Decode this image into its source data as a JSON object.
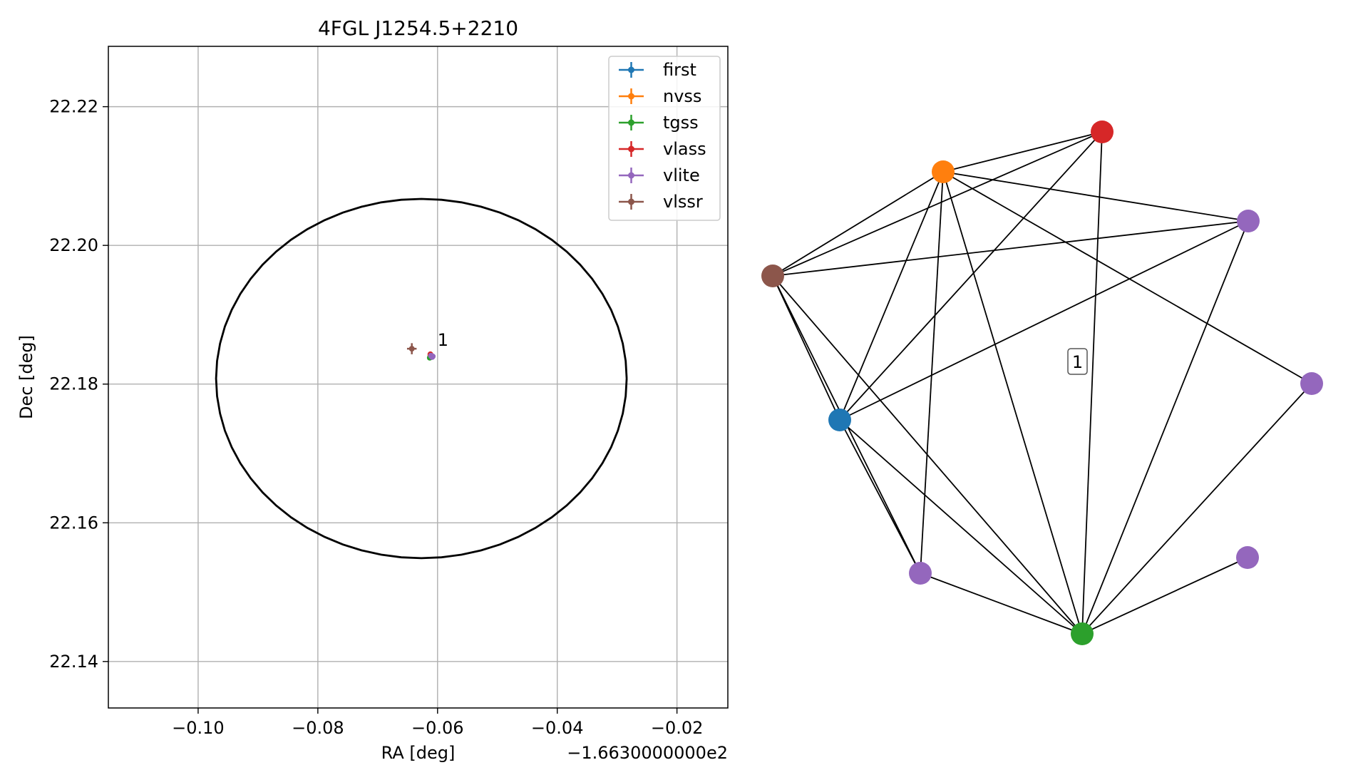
{
  "chart_data": [
    {
      "type": "scatter",
      "title": "4FGL J1254.5+2210",
      "xlabel": "RA [deg]",
      "ylabel": "Dec [deg]",
      "x_offset_label": "−1.6630000000e2",
      "xlim": [
        -0.115,
        -0.0115
      ],
      "ylim": [
        22.1333,
        22.2287
      ],
      "xticks": [
        -0.1,
        -0.08,
        -0.06,
        -0.04,
        -0.02
      ],
      "xtick_labels": [
        "−0.10",
        "−0.08",
        "−0.06",
        "−0.04",
        "−0.02"
      ],
      "yticks": [
        22.14,
        22.16,
        22.18,
        22.2,
        22.22
      ],
      "ytick_labels": [
        "22.14",
        "22.16",
        "22.18",
        "22.20",
        "22.22"
      ],
      "grid": true,
      "legend_position": "top-right",
      "ellipse": {
        "center_x": -0.0627,
        "center_y": 22.1808,
        "semi_axis_x": 0.0343,
        "semi_axis_y": 0.0259,
        "color": "#000000"
      },
      "cluster_label": {
        "text": "1",
        "x": -0.06,
        "y": 22.1855
      },
      "series": [
        {
          "name": "first",
          "color": "#1f77b4",
          "points": [
            {
              "x": -0.0612,
              "y": 22.184,
              "xerr": 0.0002,
              "yerr": 0.0002
            }
          ]
        },
        {
          "name": "nvss",
          "color": "#ff7f0e",
          "points": [
            {
              "x": -0.0612,
              "y": 22.1841,
              "xerr": 0.0003,
              "yerr": 0.0003
            }
          ]
        },
        {
          "name": "tgss",
          "color": "#2ca02c",
          "points": [
            {
              "x": -0.0613,
              "y": 22.1838,
              "xerr": 0.0003,
              "yerr": 0.0003
            }
          ]
        },
        {
          "name": "vlass",
          "color": "#d62728",
          "points": [
            {
              "x": -0.0612,
              "y": 22.1843,
              "xerr": 0.0001,
              "yerr": 0.0001
            }
          ]
        },
        {
          "name": "vlite",
          "color": "#9467bd",
          "points": [
            {
              "x": -0.0609,
              "y": 22.1839,
              "xerr": 0.0002,
              "yerr": 0.0002
            },
            {
              "x": -0.061,
              "y": 22.184,
              "xerr": 0.0002,
              "yerr": 0.0002
            },
            {
              "x": -0.0611,
              "y": 22.1841,
              "xerr": 0.0002,
              "yerr": 0.0002
            },
            {
              "x": -0.0608,
              "y": 22.184,
              "xerr": 0.0002,
              "yerr": 0.0002
            }
          ]
        },
        {
          "name": "vlssr",
          "color": "#8c564b",
          "points": [
            {
              "x": -0.0643,
              "y": 22.1851,
              "xerr": 0.0008,
              "yerr": 0.0008
            }
          ]
        }
      ]
    },
    {
      "type": "network",
      "edge_color": "#000000",
      "nodes": [
        {
          "id": "red",
          "color": "#d62728"
        },
        {
          "id": "orange",
          "color": "#ff7f0e"
        },
        {
          "id": "vlite1",
          "color": "#9467bd"
        },
        {
          "id": "brown",
          "color": "#8c564b"
        },
        {
          "id": "vlite2",
          "color": "#9467bd"
        },
        {
          "id": "blue",
          "color": "#1f77b4"
        },
        {
          "id": "vlite3",
          "color": "#9467bd"
        },
        {
          "id": "vlite4",
          "color": "#9467bd"
        },
        {
          "id": "green",
          "color": "#2ca02c"
        }
      ],
      "edges": [
        [
          "red",
          "orange"
        ],
        [
          "red",
          "brown"
        ],
        [
          "red",
          "blue"
        ],
        [
          "red",
          "green"
        ],
        [
          "orange",
          "vlite1"
        ],
        [
          "orange",
          "brown"
        ],
        [
          "orange",
          "blue"
        ],
        [
          "orange",
          "vlite3"
        ],
        [
          "orange",
          "green"
        ],
        [
          "orange",
          "vlite2"
        ],
        [
          "vlite1",
          "brown"
        ],
        [
          "vlite1",
          "blue"
        ],
        [
          "vlite1",
          "green"
        ],
        [
          "brown",
          "blue"
        ],
        [
          "brown",
          "vlite3"
        ],
        [
          "brown",
          "green"
        ],
        [
          "blue",
          "vlite3"
        ],
        [
          "blue",
          "green"
        ],
        [
          "vlite3",
          "green"
        ],
        [
          "vlite2",
          "green"
        ],
        [
          "vlite4",
          "green"
        ]
      ],
      "cluster_label": "1"
    }
  ]
}
